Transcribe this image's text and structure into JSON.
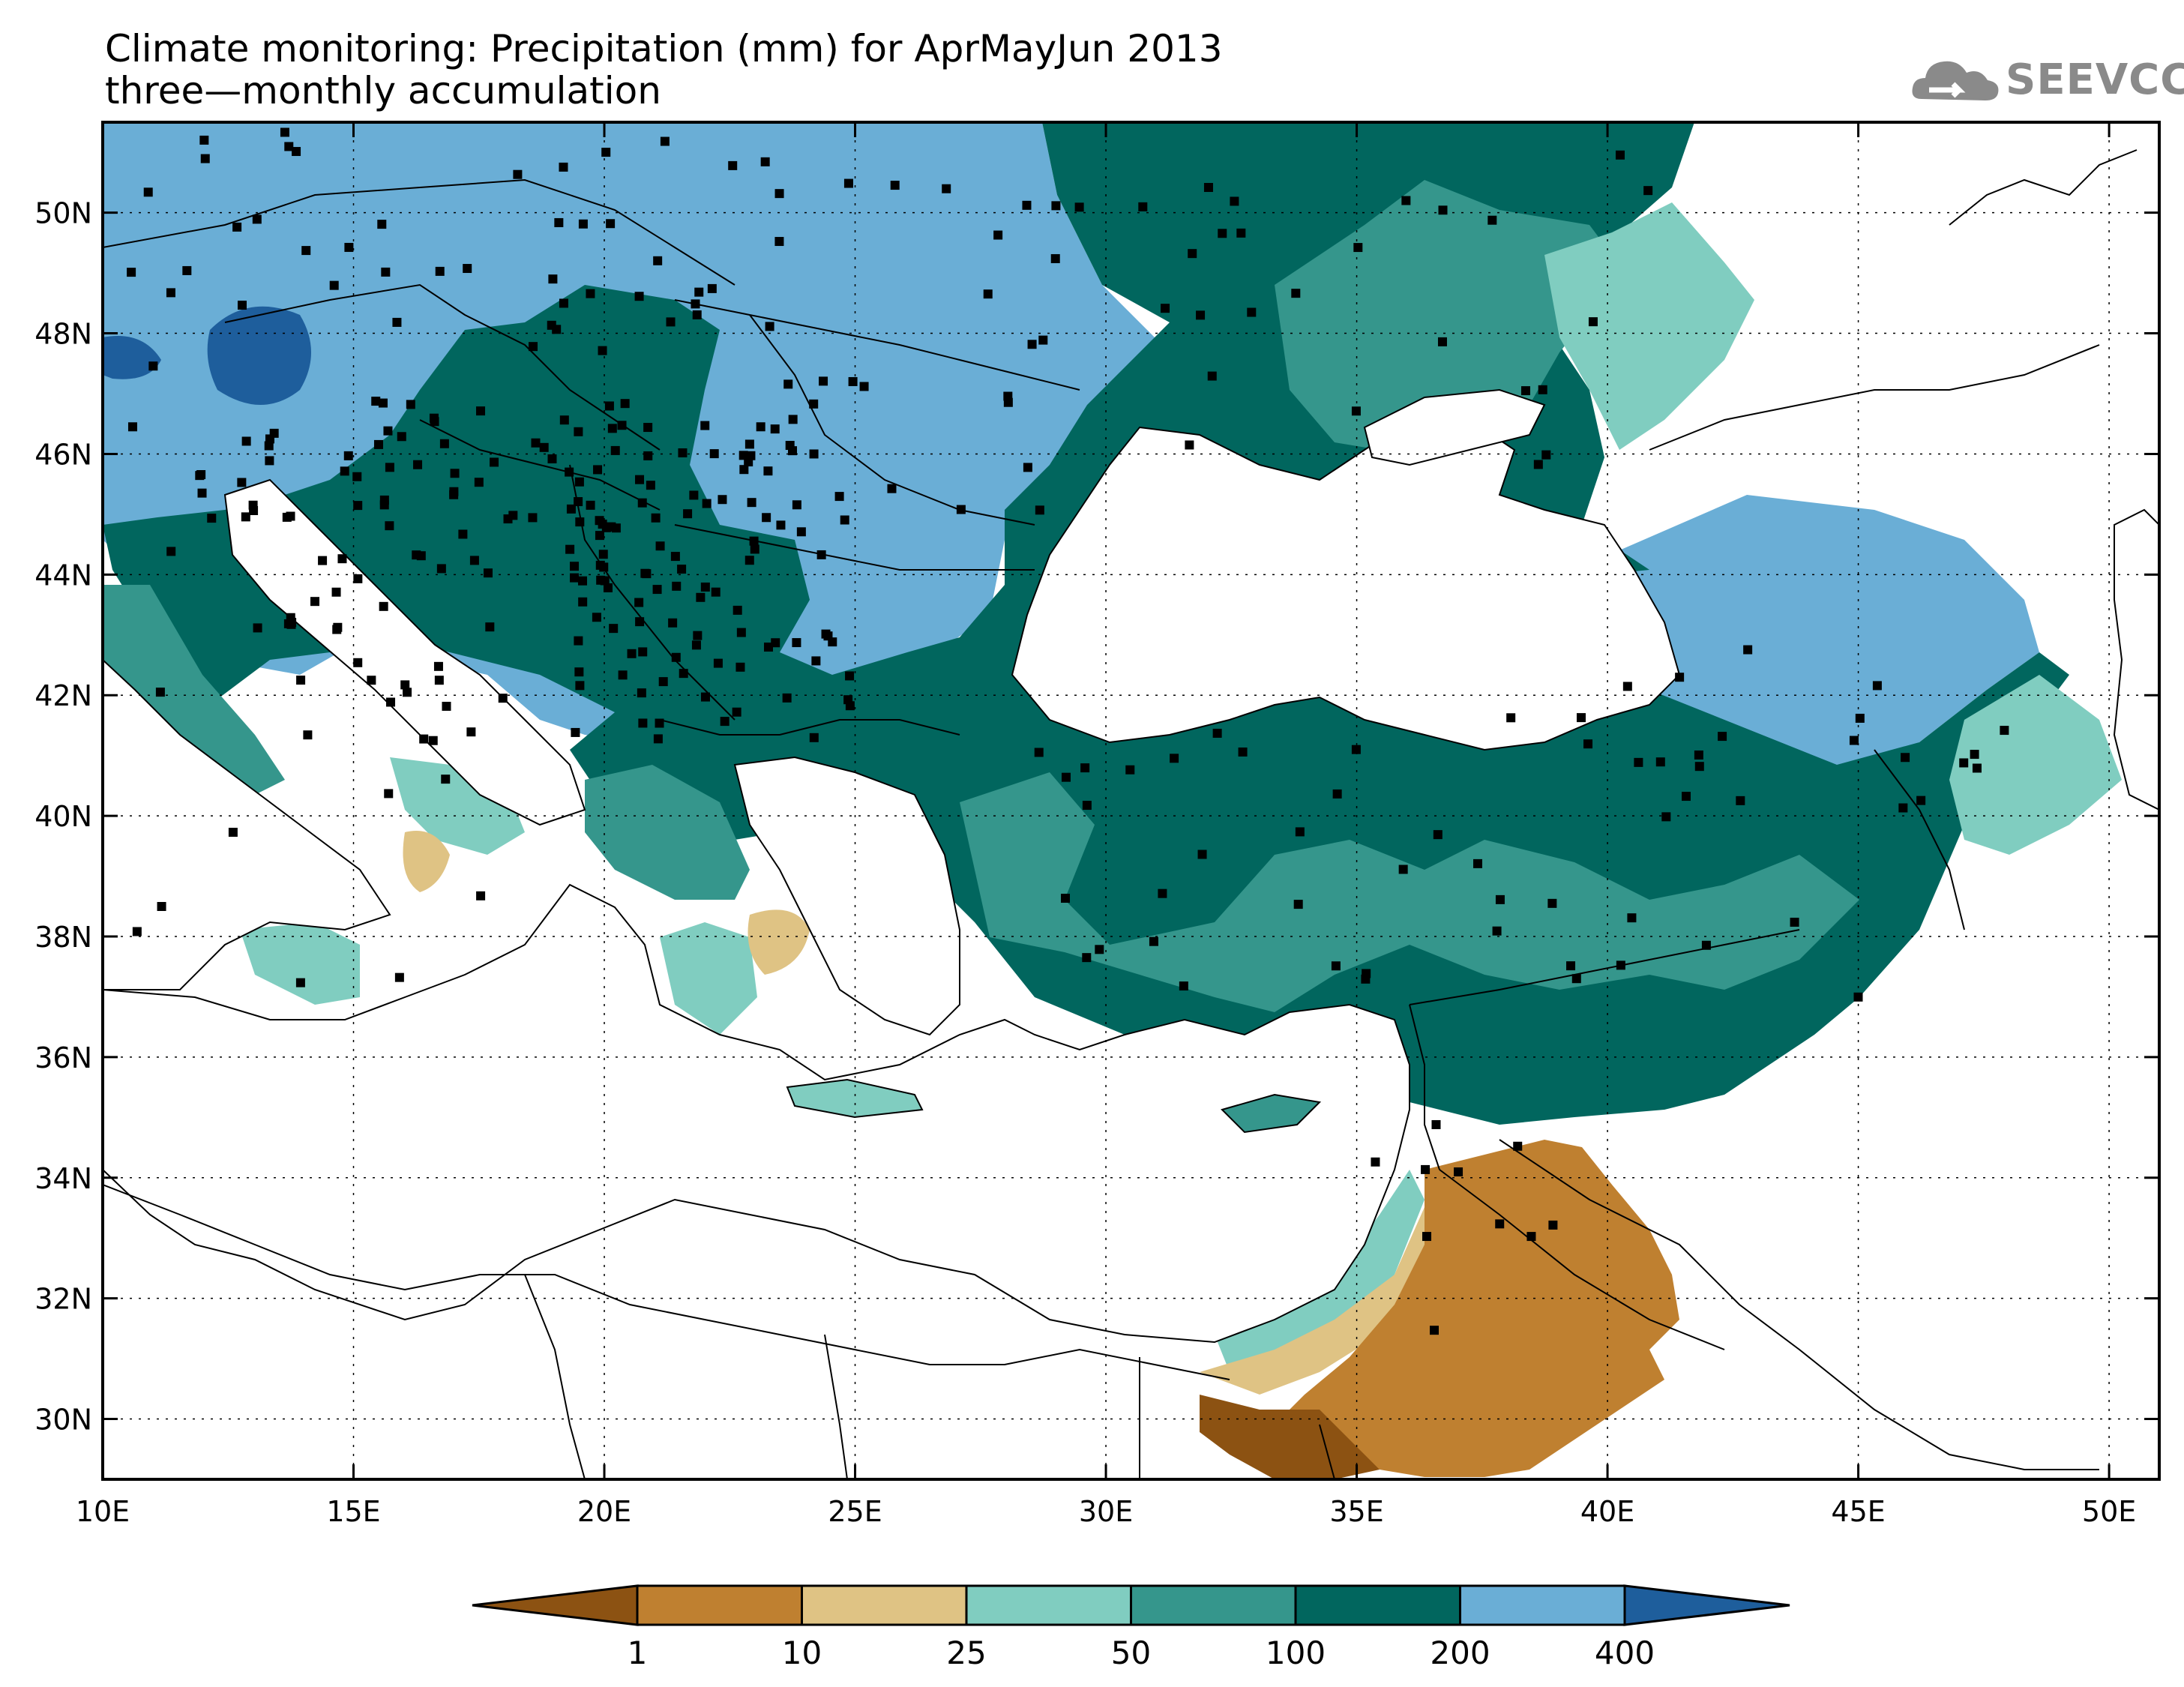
{
  "title": {
    "line1": "Climate monitoring: Precipitation (mm) for AprMayJun 2013",
    "line2": "three—monthly accumulation"
  },
  "logo": {
    "text": "SEEVCCC",
    "icon": "cloud-icon"
  },
  "map": {
    "lon_range": [
      10,
      51
    ],
    "lat_range": [
      29,
      51.5
    ],
    "x_ticks": [
      "10E",
      "15E",
      "20E",
      "25E",
      "30E",
      "35E",
      "40E",
      "45E",
      "50E"
    ],
    "y_ticks": [
      "30N",
      "32N",
      "34N",
      "36N",
      "38N",
      "40N",
      "42N",
      "44N",
      "46N",
      "48N",
      "50N"
    ],
    "grid": "dotted"
  },
  "legend": {
    "labels": [
      "1",
      "10",
      "25",
      "50",
      "100",
      "200",
      "400"
    ],
    "colors": [
      "#8c5212",
      "#bf8030",
      "#dfc384",
      "#80cdc0",
      "#35968c",
      "#01665e",
      "#6aaed6",
      "#1e5e9c"
    ]
  }
}
